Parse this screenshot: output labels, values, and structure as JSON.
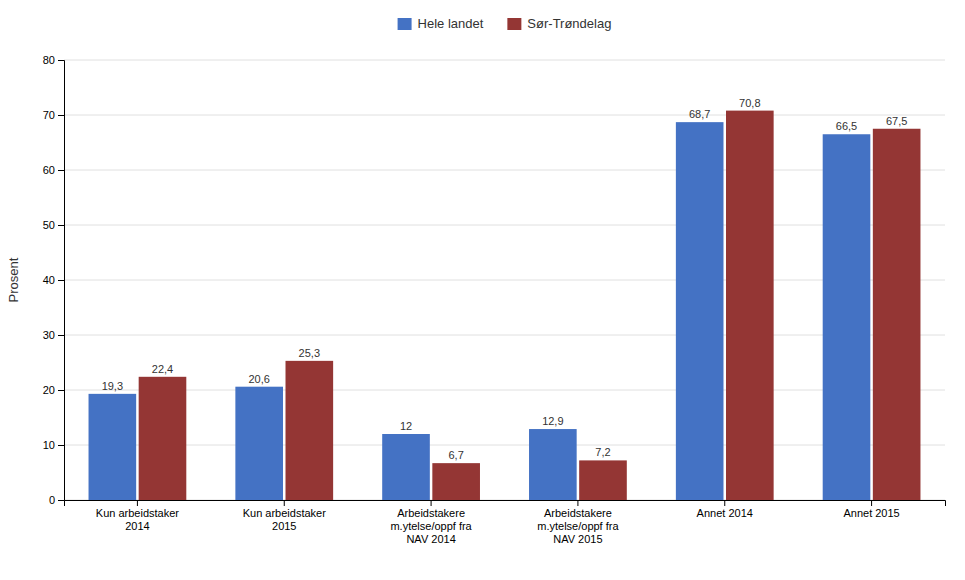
{
  "chart_data": {
    "type": "bar",
    "ylabel": "Prosent",
    "categories": [
      "Kun arbeidstaker\n2014",
      "Kun arbeidstaker\n2015",
      "Arbeidstakere\nm.ytelse/oppf fra\nNAV 2014",
      "Arbeidstakere\nm.ytelse/oppf fra\nNAV 2015",
      "Annet 2014",
      "Annet 2015"
    ],
    "series": [
      {
        "name": "Hele landet",
        "color": "#4472C4",
        "values": [
          19.3,
          20.6,
          12.0,
          12.9,
          68.7,
          66.5
        ],
        "value_labels": [
          "19,3",
          "20,6",
          "12",
          "12,9",
          "68,7",
          "66,5"
        ]
      },
      {
        "name": "Sør-Trøndelag",
        "color": "#943634",
        "values": [
          22.4,
          25.3,
          6.7,
          7.2,
          70.8,
          67.5
        ],
        "value_labels": [
          "22,4",
          "25,3",
          "6,7",
          "7,2",
          "70,8",
          "67,5"
        ]
      }
    ],
    "ylim": [
      0,
      80
    ],
    "yticks": [
      0,
      10,
      20,
      30,
      40,
      50,
      60,
      70,
      80
    ],
    "grid": true,
    "legend": "top",
    "data_labels": true
  }
}
